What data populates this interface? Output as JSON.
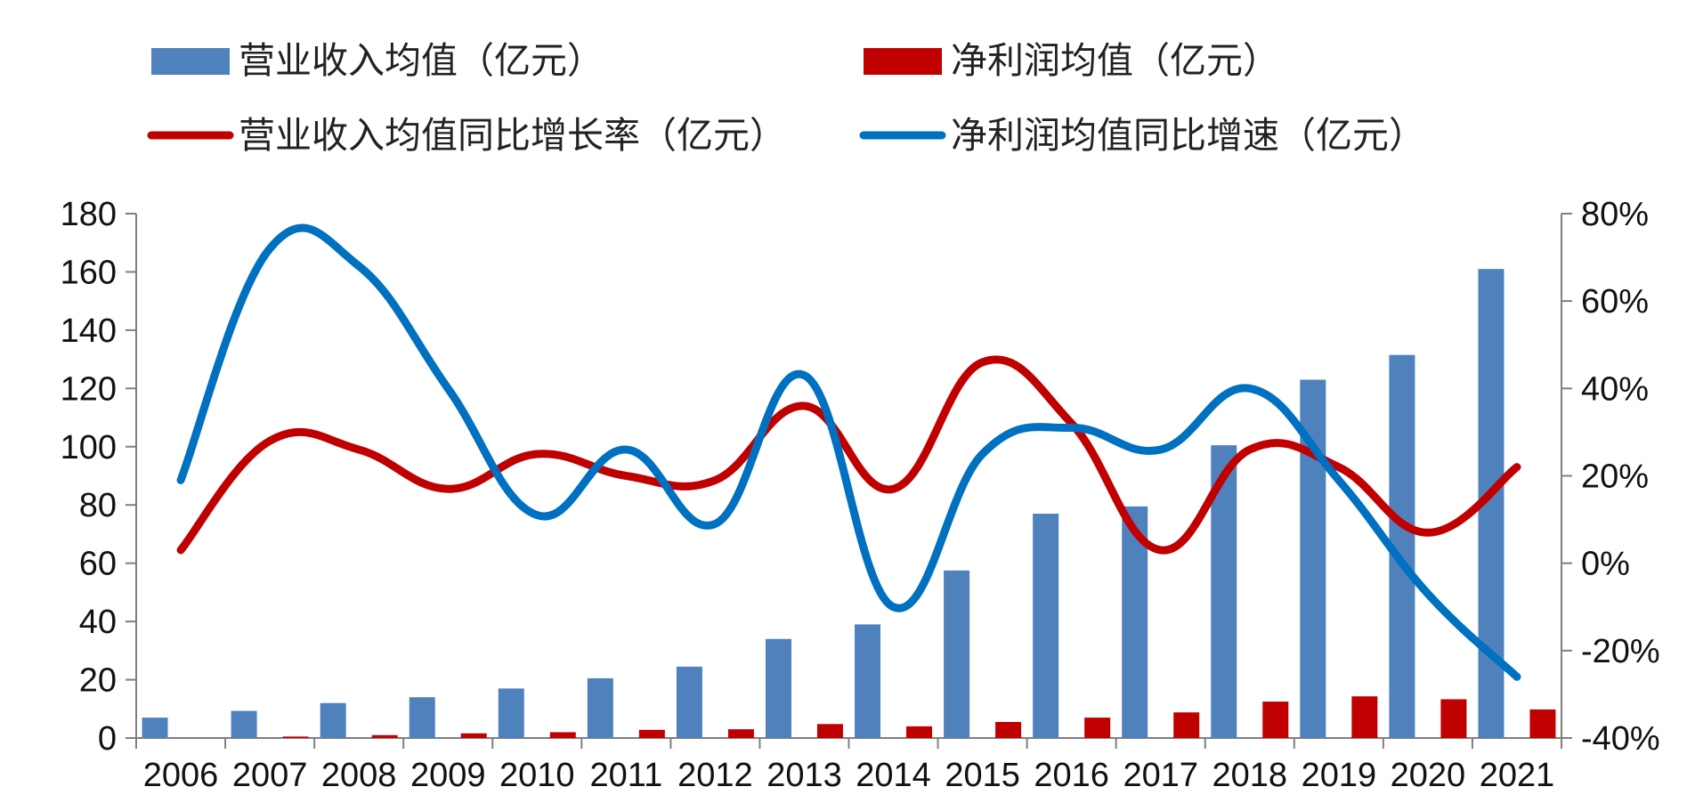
{
  "chart_data": {
    "type": "bar",
    "categories": [
      "2006",
      "2007",
      "2008",
      "2009",
      "2010",
      "2011",
      "2012",
      "2013",
      "2014",
      "2015",
      "2016",
      "2017",
      "2018",
      "2019",
      "2020",
      "2021"
    ],
    "left_axis": {
      "ylim": [
        0,
        180
      ],
      "ticks": [
        "0",
        "20",
        "40",
        "60",
        "80",
        "100",
        "120",
        "140",
        "160",
        "180"
      ]
    },
    "right_axis": {
      "ylim": [
        -40,
        80
      ],
      "ticks": [
        "-40%",
        "-20%",
        "0%",
        "20%",
        "40%",
        "60%",
        "80%"
      ]
    },
    "series": [
      {
        "name": "营业收入均值（亿元）",
        "type": "bar",
        "axis": "left",
        "color": "#4F81BD",
        "values": [
          7,
          9.3,
          12,
          14,
          17,
          20.5,
          24.5,
          34,
          39,
          57.5,
          77,
          79.5,
          100.5,
          123,
          131.5,
          161
        ]
      },
      {
        "name": "净利润均值（亿元）",
        "type": "bar",
        "axis": "left",
        "color": "#C00000",
        "values": [
          0,
          0.5,
          1,
          1.6,
          2,
          2.8,
          3,
          4.8,
          4,
          5.5,
          7,
          8.8,
          12.5,
          14.3,
          13.3,
          9.8
        ]
      },
      {
        "name": "营业收入均值同比增长率（亿元）",
        "type": "line",
        "axis": "right",
        "color": "#C00000",
        "values": [
          3,
          28,
          26,
          17,
          25,
          20,
          19,
          36,
          17,
          46,
          32,
          3,
          26,
          22,
          7,
          22
        ]
      },
      {
        "name": "净利润均值同比增速（亿元）",
        "type": "line",
        "axis": "right",
        "color": "#0070C0",
        "values": [
          19,
          72,
          68,
          40,
          11,
          26,
          9,
          43,
          -10,
          25,
          31,
          26,
          40,
          19,
          -7,
          -26
        ]
      }
    ],
    "legend": {
      "bar_items": [
        "营业收入均值（亿元）",
        "净利润均值（亿元）"
      ],
      "line_items": [
        "营业收入均值同比增长率（亿元）",
        "净利润均值同比增速（亿元）"
      ]
    }
  }
}
